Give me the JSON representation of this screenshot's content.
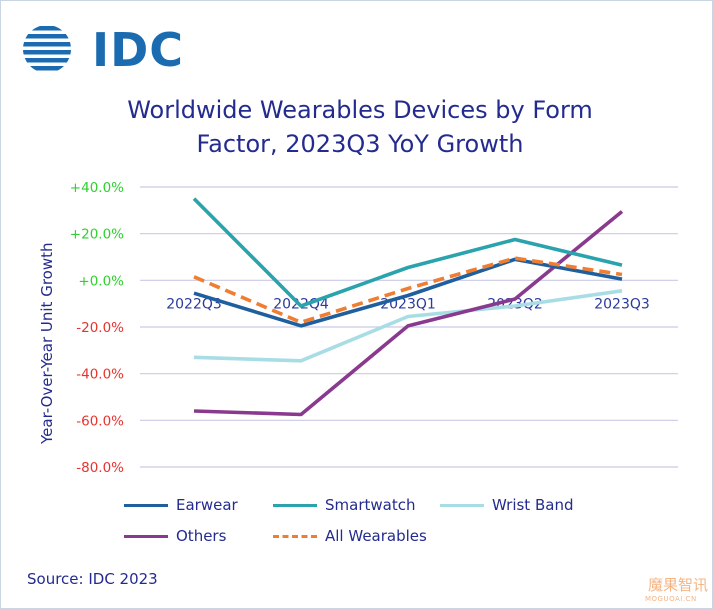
{
  "brand": {
    "logo_text": "IDC",
    "logo_color": "#1b6bb0"
  },
  "watermark": {
    "main": "魔果智讯",
    "sub": "MOGUOAI.CN"
  },
  "source": "Source: IDC 2023",
  "chart_data": {
    "type": "line",
    "title_line1": "Worldwide Wearables Devices by Form",
    "title_line2": "Factor, 2023Q3 YoY Growth",
    "xlabel": "",
    "ylabel": "Year-Over-Year Unit Growth",
    "categories": [
      "2022Q3",
      "2022Q4",
      "2023Q1",
      "2023Q2",
      "2023Q3"
    ],
    "ylim": [
      -80,
      40
    ],
    "yticks": [
      {
        "value": 40,
        "label": "+40.0%",
        "color": "#2ed12e"
      },
      {
        "value": 20,
        "label": "+20.0%",
        "color": "#2ed12e"
      },
      {
        "value": 0,
        "label": "+0.0%",
        "color": "#2ed12e"
      },
      {
        "value": -20,
        "label": "-20.0%",
        "color": "#e8332d"
      },
      {
        "value": -40,
        "label": "-40.0%",
        "color": "#e8332d"
      },
      {
        "value": -60,
        "label": "-60.0%",
        "color": "#e8332d"
      },
      {
        "value": -80,
        "label": "-80.0%",
        "color": "#e8332d"
      }
    ],
    "grid": true,
    "legend_position": "bottom",
    "series": [
      {
        "name": "Earwear",
        "color": "#1f5f9e",
        "dash": false,
        "values": [
          -5.5,
          -19.5,
          -6.5,
          9.0,
          0.5
        ]
      },
      {
        "name": "Smartwatch",
        "color": "#2aa3ad",
        "dash": false,
        "values": [
          35.0,
          -11.0,
          5.5,
          17.5,
          6.5
        ]
      },
      {
        "name": "Wrist Band",
        "color": "#a9dde6",
        "dash": false,
        "values": [
          -33.0,
          -34.5,
          -15.5,
          -11.0,
          -4.5
        ]
      },
      {
        "name": "Others",
        "color": "#8a3a8e",
        "dash": false,
        "values": [
          -56.0,
          -57.5,
          -19.5,
          -8.0,
          29.5
        ]
      },
      {
        "name": "All Wearables",
        "color": "#ef7d32",
        "dash": true,
        "values": [
          1.5,
          -18.0,
          -3.5,
          9.5,
          2.5
        ]
      }
    ]
  }
}
